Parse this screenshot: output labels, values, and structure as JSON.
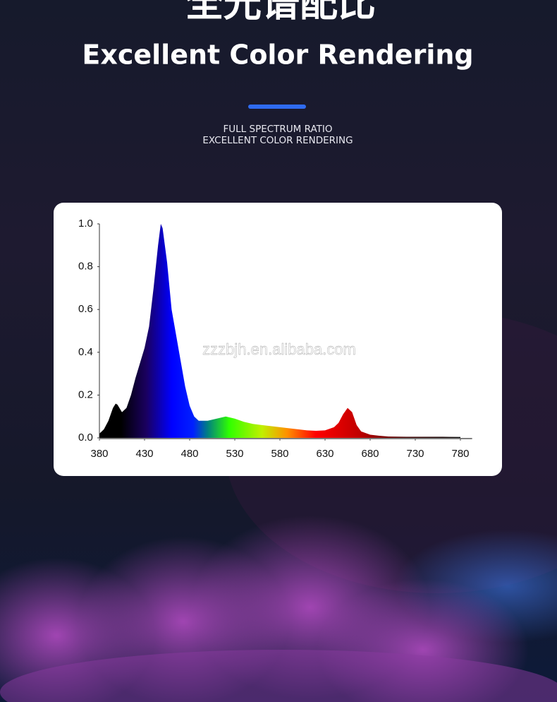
{
  "header": {
    "title_cn": "全光谱配比",
    "title": "Excellent Color Rendering",
    "subtitle_lines": [
      "FULL SPECTRUM RATIO",
      "EXCELLENT COLOR RENDERING"
    ]
  },
  "chart_data": {
    "type": "area",
    "annotation": "zzzbjh.en.alibaba.com",
    "x": [
      380,
      385,
      390,
      395,
      398,
      400,
      405,
      410,
      415,
      420,
      425,
      430,
      435,
      440,
      445,
      448,
      450,
      455,
      460,
      465,
      470,
      475,
      480,
      485,
      490,
      500,
      510,
      520,
      530,
      540,
      550,
      560,
      570,
      580,
      590,
      600,
      610,
      620,
      630,
      640,
      645,
      650,
      655,
      660,
      665,
      670,
      680,
      690,
      700,
      720,
      740,
      760,
      780
    ],
    "values": [
      0.02,
      0.04,
      0.08,
      0.14,
      0.16,
      0.155,
      0.12,
      0.14,
      0.2,
      0.28,
      0.35,
      0.42,
      0.52,
      0.7,
      0.9,
      1.0,
      0.98,
      0.82,
      0.6,
      0.48,
      0.36,
      0.24,
      0.15,
      0.1,
      0.08,
      0.08,
      0.09,
      0.1,
      0.09,
      0.075,
      0.065,
      0.06,
      0.055,
      0.05,
      0.045,
      0.04,
      0.035,
      0.033,
      0.035,
      0.05,
      0.07,
      0.11,
      0.14,
      0.12,
      0.06,
      0.03,
      0.015,
      0.01,
      0.006,
      0.005,
      0.005,
      0.005,
      0.004
    ],
    "xlim": [
      380,
      793
    ],
    "ylim": [
      0,
      1.0
    ],
    "xticks": [
      380,
      430,
      480,
      530,
      580,
      630,
      680,
      730,
      780
    ],
    "yticks": [
      {
        "value": 0,
        "label": "0.0"
      },
      0.2,
      0.4,
      0.6,
      0.8,
      {
        "value": 1.0,
        "label": "1.0"
      }
    ],
    "grid": false
  }
}
